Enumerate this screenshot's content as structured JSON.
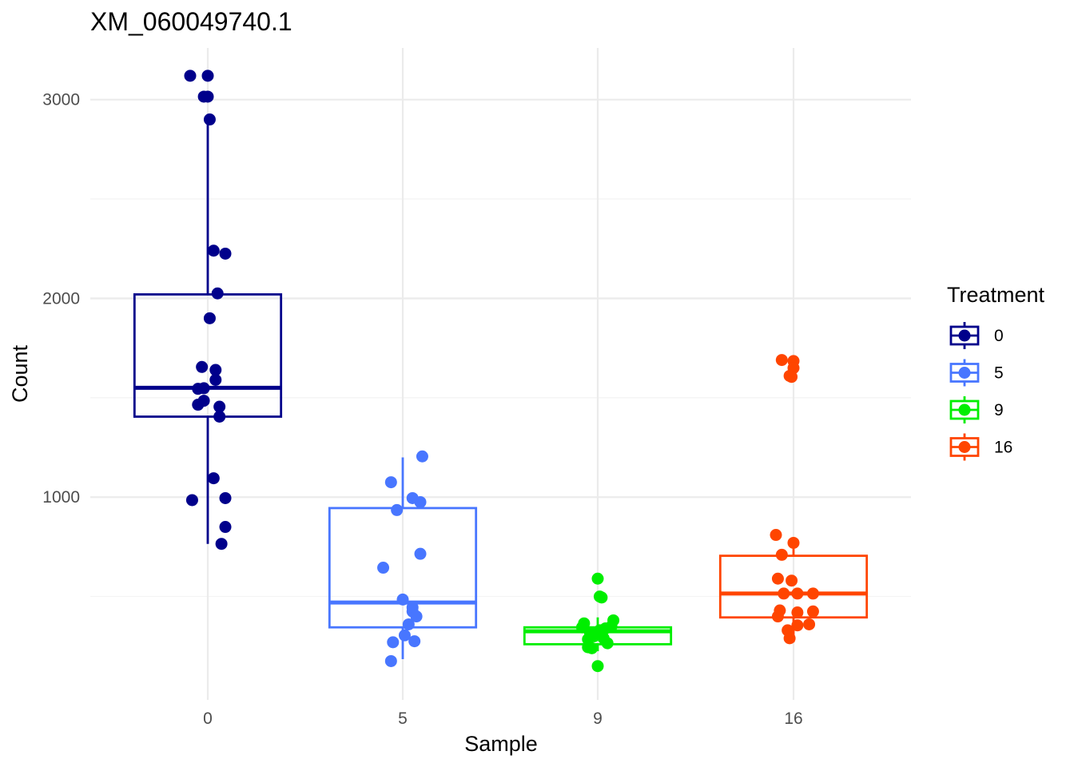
{
  "chart_data": {
    "type": "boxplot",
    "title": "XM_060049740.1",
    "xlabel": "Sample",
    "ylabel": "Count",
    "categories": [
      "0",
      "5",
      "9",
      "16"
    ],
    "ylim": [
      -20,
      3260
    ],
    "yticks": [
      1000,
      2000,
      3000
    ],
    "grid": true,
    "legend": {
      "title": "Treatment",
      "position": "right",
      "entries": [
        "0",
        "5",
        "9",
        "16"
      ]
    },
    "colors": {
      "0": "#00008b",
      "5": "#4876ff",
      "9": "#00ee00",
      "16": "#ff4500"
    },
    "series": [
      {
        "category": "0",
        "box": {
          "q1": 1405,
          "median": 1550,
          "q3": 2020,
          "whisker_low": 765,
          "whisker_high": 2895
        },
        "points": [
          {
            "x": -0.09,
            "y": 3120
          },
          {
            "x": 0.0,
            "y": 3120
          },
          {
            "x": -0.02,
            "y": 3015
          },
          {
            "x": 0.0,
            "y": 3015
          },
          {
            "x": 0.01,
            "y": 2900
          },
          {
            "x": 0.03,
            "y": 2240
          },
          {
            "x": 0.09,
            "y": 2225
          },
          {
            "x": 0.05,
            "y": 2025
          },
          {
            "x": 0.01,
            "y": 1900
          },
          {
            "x": -0.03,
            "y": 1655
          },
          {
            "x": 0.04,
            "y": 1640
          },
          {
            "x": 0.04,
            "y": 1590
          },
          {
            "x": -0.05,
            "y": 1545
          },
          {
            "x": -0.02,
            "y": 1548
          },
          {
            "x": -0.02,
            "y": 1485
          },
          {
            "x": -0.05,
            "y": 1465
          },
          {
            "x": 0.06,
            "y": 1455
          },
          {
            "x": 0.06,
            "y": 1405
          },
          {
            "x": 0.03,
            "y": 1095
          },
          {
            "x": -0.08,
            "y": 985
          },
          {
            "x": 0.09,
            "y": 995
          },
          {
            "x": 0.09,
            "y": 850
          },
          {
            "x": 0.07,
            "y": 765
          }
        ]
      },
      {
        "category": "5",
        "box": {
          "q1": 345,
          "median": 470,
          "q3": 945,
          "whisker_low": 185,
          "whisker_high": 1200
        },
        "points": [
          {
            "x": 0.1,
            "y": 1205
          },
          {
            "x": -0.06,
            "y": 1075
          },
          {
            "x": 0.05,
            "y": 995
          },
          {
            "x": 0.09,
            "y": 975
          },
          {
            "x": -0.03,
            "y": 935
          },
          {
            "x": 0.09,
            "y": 715
          },
          {
            "x": -0.1,
            "y": 645
          },
          {
            "x": 0.0,
            "y": 485
          },
          {
            "x": 0.05,
            "y": 445
          },
          {
            "x": 0.05,
            "y": 425
          },
          {
            "x": 0.07,
            "y": 400
          },
          {
            "x": 0.03,
            "y": 360
          },
          {
            "x": 0.01,
            "y": 305
          },
          {
            "x": -0.05,
            "y": 270
          },
          {
            "x": 0.06,
            "y": 275
          },
          {
            "x": -0.06,
            "y": 175
          }
        ]
      },
      {
        "category": "9",
        "box": {
          "q1": 260,
          "median": 325,
          "q3": 345,
          "whisker_low": 225,
          "whisker_high": 395
        },
        "points": [
          {
            "x": 0.0,
            "y": 590
          },
          {
            "x": 0.01,
            "y": 500
          },
          {
            "x": 0.02,
            "y": 495
          },
          {
            "x": 0.08,
            "y": 380
          },
          {
            "x": -0.07,
            "y": 365
          },
          {
            "x": 0.07,
            "y": 350
          },
          {
            "x": -0.08,
            "y": 345
          },
          {
            "x": 0.04,
            "y": 340
          },
          {
            "x": 0.01,
            "y": 330
          },
          {
            "x": -0.04,
            "y": 320
          },
          {
            "x": -0.02,
            "y": 300
          },
          {
            "x": 0.03,
            "y": 290
          },
          {
            "x": -0.05,
            "y": 285
          },
          {
            "x": 0.05,
            "y": 265
          },
          {
            "x": -0.05,
            "y": 245
          },
          {
            "x": -0.03,
            "y": 240
          },
          {
            "x": 0.0,
            "y": 150
          }
        ]
      },
      {
        "category": "16",
        "box": {
          "q1": 395,
          "median": 515,
          "q3": 705,
          "whisker_low": 270,
          "whisker_high": 780
        },
        "points": [
          {
            "x": -0.06,
            "y": 1690
          },
          {
            "x": 0.0,
            "y": 1685
          },
          {
            "x": 0.0,
            "y": 1650
          },
          {
            "x": -0.02,
            "y": 1610
          },
          {
            "x": -0.01,
            "y": 1605
          },
          {
            "x": -0.09,
            "y": 810
          },
          {
            "x": 0.0,
            "y": 770
          },
          {
            "x": -0.06,
            "y": 710
          },
          {
            "x": -0.08,
            "y": 590
          },
          {
            "x": -0.01,
            "y": 580
          },
          {
            "x": -0.05,
            "y": 515
          },
          {
            "x": 0.02,
            "y": 515
          },
          {
            "x": 0.1,
            "y": 515
          },
          {
            "x": -0.07,
            "y": 430
          },
          {
            "x": 0.02,
            "y": 420
          },
          {
            "x": 0.1,
            "y": 425
          },
          {
            "x": -0.08,
            "y": 400
          },
          {
            "x": 0.08,
            "y": 360
          },
          {
            "x": 0.02,
            "y": 355
          },
          {
            "x": -0.03,
            "y": 330
          },
          {
            "x": -0.02,
            "y": 290
          }
        ]
      }
    ]
  }
}
